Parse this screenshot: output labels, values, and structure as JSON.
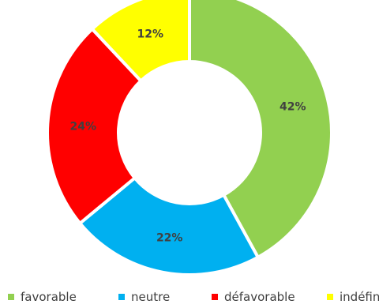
{
  "chart_data": {
    "type": "pie",
    "variant": "donut",
    "categories": [
      "favorable",
      "neutre",
      "défavorable",
      "indéfini"
    ],
    "values": [
      42,
      22,
      24,
      12
    ],
    "labels": [
      "42%",
      "22%",
      "24%",
      "12%"
    ],
    "colors": [
      "#92D050",
      "#00B0F0",
      "#FF0000",
      "#FFFF00"
    ],
    "legend": "bottom",
    "title": ""
  }
}
